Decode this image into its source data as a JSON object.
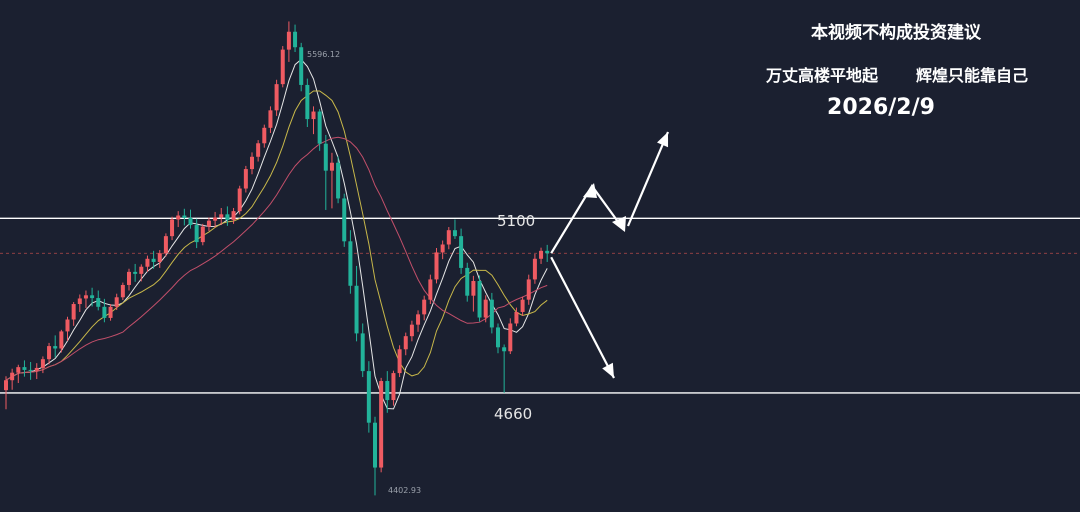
{
  "overlay": {
    "disclaimer": "本视频不构成投资建议",
    "slogan_left": "万丈高楼平地起",
    "slogan_right": "辉煌只能靠自己",
    "date": "2026/2/9"
  },
  "levels": {
    "resistance": "5100",
    "support": "4660"
  },
  "extremes": {
    "high": "5596.12",
    "low": "4402.93"
  },
  "colors": {
    "background": "#1b2030",
    "up": "#ef5b62",
    "down": "#22b39a",
    "ma_fast": "#e6e6e6",
    "ma_mid": "#c8b84a",
    "ma_slow": "#c24f6a",
    "level_line": "#ffffff",
    "current_price_line": "#b84a4a",
    "arrow": "#ffffff"
  },
  "chart_data": {
    "type": "candlestick",
    "ylim": [
      4360,
      5650
    ],
    "price_levels": [
      5100,
      4660
    ],
    "scenario_arrows": [
      "up",
      "down"
    ],
    "moving_averages": [
      "MA-fast",
      "MA-mid",
      "MA-slow"
    ],
    "candles": [
      [
        4667,
        4702,
        4619,
        4692
      ],
      [
        4692,
        4721,
        4668,
        4711
      ],
      [
        4711,
        4731,
        4685,
        4725
      ],
      [
        4725,
        4742,
        4701,
        4718
      ],
      [
        4718,
        4738,
        4693,
        4716
      ],
      [
        4716,
        4735,
        4695,
        4723
      ],
      [
        4723,
        4752,
        4710,
        4745
      ],
      [
        4745,
        4786,
        4732,
        4778
      ],
      [
        4778,
        4805,
        4749,
        4772
      ],
      [
        4772,
        4819,
        4762,
        4815
      ],
      [
        4815,
        4852,
        4791,
        4845
      ],
      [
        4845,
        4889,
        4829,
        4884
      ],
      [
        4884,
        4908,
        4864,
        4898
      ],
      [
        4898,
        4918,
        4874,
        4906
      ],
      [
        4906,
        4925,
        4878,
        4899
      ],
      [
        4899,
        4918,
        4868,
        4877
      ],
      [
        4877,
        4897,
        4838,
        4849
      ],
      [
        4849,
        4884,
        4842,
        4877
      ],
      [
        4877,
        4910,
        4869,
        4901
      ],
      [
        4901,
        4938,
        4894,
        4932
      ],
      [
        4932,
        4973,
        4918,
        4965
      ],
      [
        4965,
        4985,
        4940,
        4960
      ],
      [
        4960,
        4984,
        4941,
        4978
      ],
      [
        4978,
        5006,
        4965,
        4998
      ],
      [
        4998,
        5018,
        4973,
        4990
      ],
      [
        4990,
        5020,
        4975,
        5012
      ],
      [
        5012,
        5062,
        5004,
        5055
      ],
      [
        5055,
        5104,
        5045,
        5097
      ],
      [
        5097,
        5118,
        5078,
        5107
      ],
      [
        5107,
        5124,
        5082,
        5101
      ],
      [
        5101,
        5122,
        5074,
        5083
      ],
      [
        5083,
        5099,
        5025,
        5040
      ],
      [
        5040,
        5086,
        5032,
        5079
      ],
      [
        5079,
        5102,
        5068,
        5094
      ],
      [
        5094,
        5116,
        5077,
        5102
      ],
      [
        5102,
        5126,
        5083,
        5110
      ],
      [
        5110,
        5130,
        5081,
        5096
      ],
      [
        5096,
        5126,
        5086,
        5118
      ],
      [
        5118,
        5182,
        5110,
        5175
      ],
      [
        5175,
        5232,
        5165,
        5224
      ],
      [
        5224,
        5266,
        5211,
        5255
      ],
      [
        5255,
        5297,
        5243,
        5289
      ],
      [
        5289,
        5336,
        5278,
        5328
      ],
      [
        5328,
        5382,
        5315,
        5372
      ],
      [
        5372,
        5449,
        5358,
        5438
      ],
      [
        5438,
        5534,
        5430,
        5525
      ],
      [
        5525,
        5596,
        5494,
        5570
      ],
      [
        5570,
        5588,
        5519,
        5531
      ],
      [
        5531,
        5542,
        5420,
        5436
      ],
      [
        5436,
        5452,
        5330,
        5350
      ],
      [
        5350,
        5382,
        5312,
        5369
      ],
      [
        5369,
        5375,
        5270,
        5288
      ],
      [
        5288,
        5310,
        5121,
        5220
      ],
      [
        5220,
        5265,
        5125,
        5240
      ],
      [
        5240,
        5256,
        5138,
        5150
      ],
      [
        5150,
        5162,
        5028,
        5042
      ],
      [
        5042,
        5070,
        4910,
        4930
      ],
      [
        4930,
        4980,
        4790,
        4810
      ],
      [
        4810,
        4835,
        4700,
        4715
      ],
      [
        4715,
        4740,
        4560,
        4585
      ],
      [
        4585,
        4600,
        4402,
        4472
      ],
      [
        4472,
        4698,
        4460,
        4690
      ],
      [
        4690,
        4715,
        4610,
        4642
      ],
      [
        4642,
        4716,
        4628,
        4710
      ],
      [
        4710,
        4780,
        4700,
        4770
      ],
      [
        4770,
        4812,
        4755,
        4803
      ],
      [
        4803,
        4842,
        4790,
        4832
      ],
      [
        4832,
        4868,
        4814,
        4858
      ],
      [
        4858,
        4905,
        4843,
        4895
      ],
      [
        4895,
        4958,
        4884,
        4946
      ],
      [
        4946,
        5025,
        4936,
        5014
      ],
      [
        5014,
        5044,
        4997,
        5034
      ],
      [
        5034,
        5078,
        5022,
        5070
      ],
      [
        5070,
        5097,
        5048,
        5055
      ],
      [
        5055,
        5074,
        4960,
        4975
      ],
      [
        4975,
        4988,
        4890,
        4905
      ],
      [
        4905,
        4955,
        4865,
        4942
      ],
      [
        4942,
        4956,
        4840,
        4850
      ],
      [
        4850,
        4906,
        4838,
        4895
      ],
      [
        4895,
        4912,
        4810,
        4825
      ],
      [
        4825,
        4835,
        4760,
        4775
      ],
      [
        4775,
        4782,
        4660,
        4765
      ],
      [
        4765,
        4848,
        4758,
        4835
      ],
      [
        4835,
        4875,
        4828,
        4864
      ],
      [
        4864,
        4902,
        4854,
        4895
      ],
      [
        4895,
        4958,
        4882,
        4946
      ],
      [
        4946,
        5010,
        4935,
        4998
      ],
      [
        4998,
        5026,
        4985,
        5018
      ],
      [
        5018,
        5033,
        4990,
        5012
      ]
    ]
  }
}
